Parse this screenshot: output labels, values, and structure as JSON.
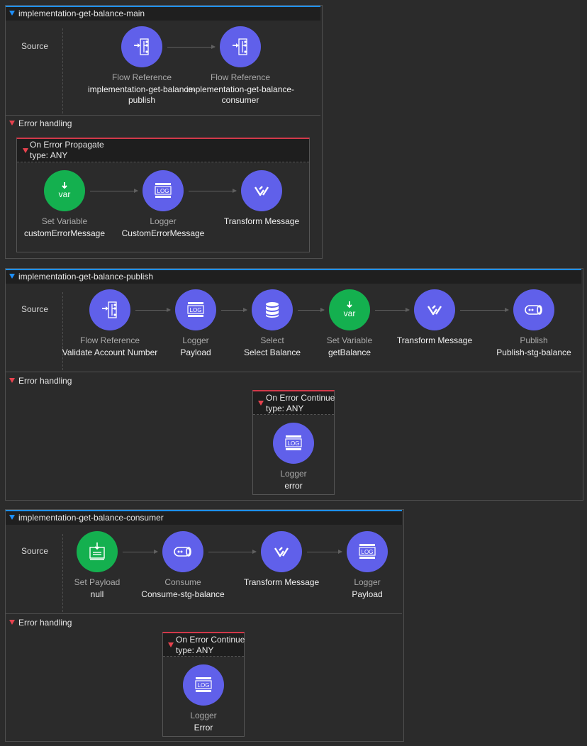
{
  "flows": [
    {
      "title": "implementation-get-balance-main",
      "source_label": "Source",
      "nodes": [
        {
          "type": "Flow Reference",
          "name": "implementation-get-balance-publish",
          "icon": "flow-reference-icon"
        },
        {
          "type": "Flow Reference",
          "name": "implementation-get-balance-consumer",
          "icon": "flow-reference-icon"
        }
      ],
      "error_handling": {
        "label": "Error handling",
        "handler": {
          "title": "On Error Propagate",
          "subtitle": "type: ANY",
          "nodes": [
            {
              "type": "Set Variable",
              "name": "customErrorMessage",
              "icon": "set-variable-icon"
            },
            {
              "type": "Logger",
              "name": "CustomErrorMessage",
              "icon": "logger-icon"
            },
            {
              "type": "",
              "name": "Transform Message",
              "icon": "transform-message-icon"
            }
          ]
        }
      }
    },
    {
      "title": "implementation-get-balance-publish",
      "source_label": "Source",
      "nodes": [
        {
          "type": "Flow Reference",
          "name": "Validate Account Number",
          "icon": "flow-reference-icon"
        },
        {
          "type": "Logger",
          "name": "Payload",
          "icon": "logger-icon"
        },
        {
          "type": "Select",
          "name": "Select Balance",
          "icon": "database-icon"
        },
        {
          "type": "Set Variable",
          "name": "getBalance",
          "icon": "set-variable-icon"
        },
        {
          "type": "",
          "name": "Transform Message",
          "icon": "transform-message-icon"
        },
        {
          "type": "Publish",
          "name": "Publish-stg-balance",
          "icon": "publish-icon"
        }
      ],
      "error_handling": {
        "label": "Error handling",
        "handler": {
          "title": "On Error Continue",
          "subtitle": "type: ANY",
          "nodes": [
            {
              "type": "Logger",
              "name": "error",
              "icon": "logger-icon"
            }
          ]
        }
      }
    },
    {
      "title": "implementation-get-balance-consumer",
      "source_label": "Source",
      "nodes": [
        {
          "type": "Set Payload",
          "name": "null",
          "icon": "set-payload-icon"
        },
        {
          "type": "Consume",
          "name": "Consume-stg-balance",
          "icon": "consume-icon"
        },
        {
          "type": "",
          "name": "Transform Message",
          "icon": "transform-message-icon"
        },
        {
          "type": "Logger",
          "name": "Payload",
          "icon": "logger-icon"
        }
      ],
      "error_handling": {
        "label": "Error handling",
        "handler": {
          "title": "On Error Continue",
          "subtitle": "type: ANY",
          "nodes": [
            {
              "type": "Logger",
              "name": "Error",
              "icon": "logger-icon"
            }
          ]
        }
      }
    }
  ],
  "colors": {
    "background": "#2b2b2b",
    "header": "#1f1f1f",
    "accent_blue": "#1e90ff",
    "error_red": "#d2394a",
    "node_blue": "#6060ea",
    "node_green": "#14b04f"
  }
}
